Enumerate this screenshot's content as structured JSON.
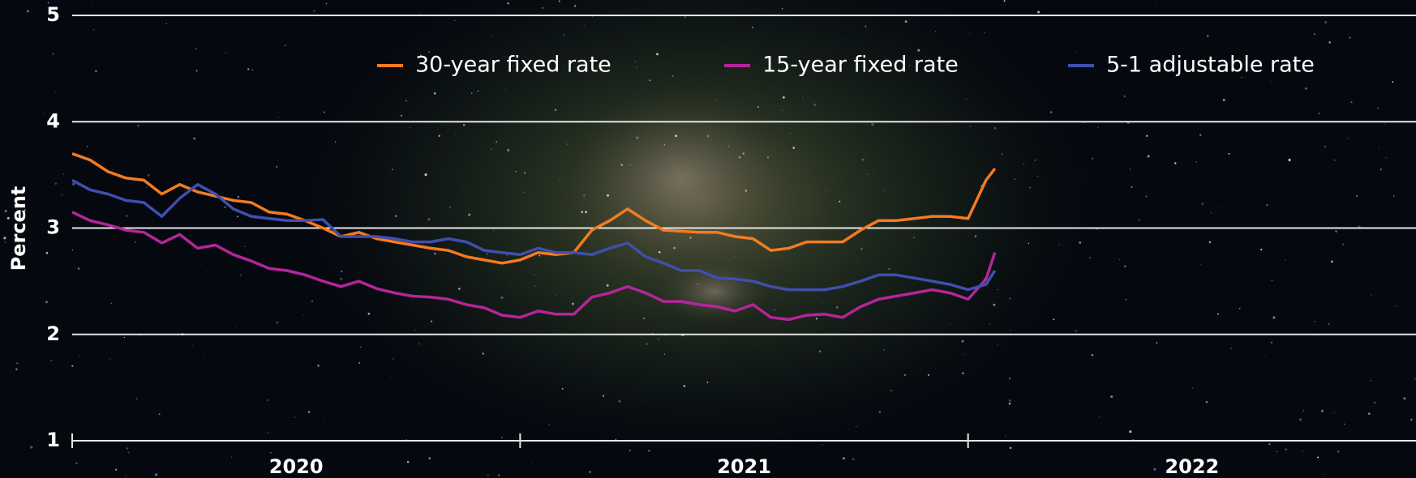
{
  "chart_data": {
    "type": "line",
    "y_label": "Percent",
    "x": [
      2020.0,
      2020.04,
      2020.08,
      2020.12,
      2020.16,
      2020.2,
      2020.24,
      2020.28,
      2020.32,
      2020.36,
      2020.4,
      2020.44,
      2020.48,
      2020.52,
      2020.56,
      2020.6,
      2020.64,
      2020.68,
      2020.72,
      2020.76,
      2020.8,
      2020.84,
      2020.88,
      2020.92,
      2020.96,
      2021.0,
      2021.04,
      2021.08,
      2021.12,
      2021.16,
      2021.2,
      2021.24,
      2021.28,
      2021.32,
      2021.36,
      2021.4,
      2021.44,
      2021.48,
      2021.52,
      2021.56,
      2021.6,
      2021.64,
      2021.68,
      2021.72,
      2021.76,
      2021.8,
      2021.84,
      2021.88,
      2021.92,
      2021.96,
      2022.0,
      2022.04,
      2022.06
    ],
    "series": [
      {
        "name": "30-year fixed rate",
        "color": "#f47b20",
        "values": [
          3.7,
          3.64,
          3.53,
          3.47,
          3.45,
          3.32,
          3.41,
          3.34,
          3.3,
          3.26,
          3.24,
          3.15,
          3.13,
          3.07,
          3.0,
          2.92,
          2.96,
          2.9,
          2.87,
          2.84,
          2.81,
          2.79,
          2.73,
          2.7,
          2.67,
          2.7,
          2.77,
          2.75,
          2.77,
          2.98,
          3.07,
          3.18,
          3.07,
          2.98,
          2.97,
          2.96,
          2.96,
          2.92,
          2.9,
          2.79,
          2.81,
          2.87,
          2.87,
          2.87,
          2.98,
          3.07,
          3.07,
          3.09,
          3.11,
          3.11,
          3.09,
          3.45,
          3.56
        ]
      },
      {
        "name": "15-year fixed rate",
        "color": "#b5259a",
        "values": [
          3.15,
          3.07,
          3.03,
          2.98,
          2.96,
          2.86,
          2.94,
          2.81,
          2.84,
          2.75,
          2.69,
          2.62,
          2.6,
          2.56,
          2.5,
          2.45,
          2.5,
          2.43,
          2.39,
          2.36,
          2.35,
          2.33,
          2.28,
          2.25,
          2.18,
          2.16,
          2.22,
          2.19,
          2.19,
          2.35,
          2.39,
          2.45,
          2.39,
          2.31,
          2.31,
          2.28,
          2.26,
          2.22,
          2.28,
          2.16,
          2.14,
          2.18,
          2.19,
          2.16,
          2.26,
          2.33,
          2.36,
          2.39,
          2.42,
          2.39,
          2.33,
          2.52,
          2.77
        ]
      },
      {
        "name": "5-1 adjustable rate",
        "color": "#3f4fae",
        "values": [
          3.45,
          3.36,
          3.32,
          3.26,
          3.24,
          3.11,
          3.28,
          3.41,
          3.32,
          3.18,
          3.11,
          3.09,
          3.07,
          3.07,
          3.08,
          2.92,
          2.92,
          2.92,
          2.9,
          2.87,
          2.87,
          2.9,
          2.87,
          2.79,
          2.77,
          2.75,
          2.81,
          2.77,
          2.77,
          2.75,
          2.81,
          2.86,
          2.73,
          2.67,
          2.6,
          2.6,
          2.53,
          2.52,
          2.5,
          2.45,
          2.42,
          2.42,
          2.42,
          2.45,
          2.5,
          2.56,
          2.56,
          2.53,
          2.5,
          2.47,
          2.42,
          2.47,
          2.6
        ]
      }
    ],
    "xlim": [
      2020,
      2023
    ],
    "xticks": [
      2020,
      2021,
      2022
    ],
    "ylim": [
      1,
      5
    ],
    "yticks": [
      1,
      2,
      3,
      4,
      5
    ],
    "grid": true
  }
}
